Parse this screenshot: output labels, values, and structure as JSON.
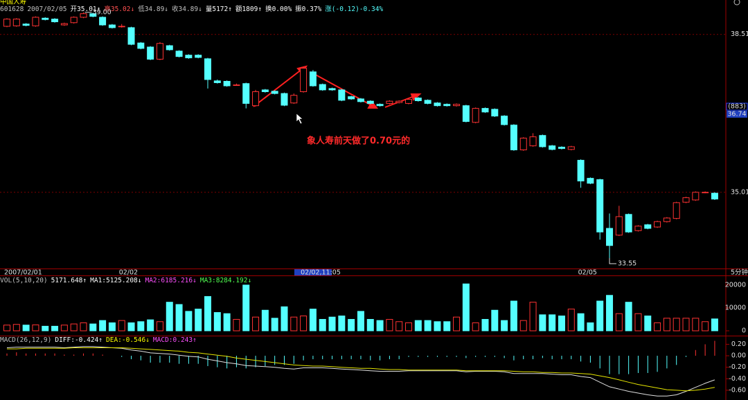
{
  "chart_data": [
    {
      "type": "candlestick",
      "title": "中国人寿",
      "info": [
        {
          "text": "601628",
          "color": "#c0c0c0"
        },
        {
          "text": "2007/02/05",
          "color": "#c0c0c0"
        },
        {
          "text": "开35.01↑",
          "color": "#ffffff"
        },
        {
          "text": "高35.02↓",
          "color": "#ff5050"
        },
        {
          "text": "低34.89↓",
          "color": "#c0c0c0"
        },
        {
          "text": "收34.89↓",
          "color": "#c0c0c0"
        },
        {
          "text": "量5172↑",
          "color": "#ffffff"
        },
        {
          "text": "额1809↑",
          "color": "#ffffff"
        },
        {
          "text": "换0.00%",
          "color": "#ffffff"
        },
        {
          "text": "振0.37%",
          "color": "#ffffff"
        },
        {
          "text": "涨(-0.12)-0.34%",
          "color": "#54ffff"
        }
      ],
      "categories": [
        "2007/02/01",
        null,
        null,
        null,
        null,
        null,
        null,
        null,
        null,
        null,
        null,
        null,
        "02/02",
        null,
        null,
        null,
        null,
        null,
        null,
        null,
        null,
        null,
        null,
        null,
        null,
        null,
        null,
        null,
        null,
        null,
        null,
        "02/02,11:05",
        null,
        null,
        null,
        null,
        null,
        null,
        null,
        null,
        null,
        null,
        null,
        null,
        null,
        null,
        null,
        null,
        null,
        null,
        null,
        null,
        null,
        null,
        null,
        null,
        null,
        null,
        null,
        null,
        "02/05",
        null,
        null,
        null,
        null,
        null,
        null,
        null,
        null,
        null,
        null,
        null,
        null,
        null,
        null
      ],
      "open": [
        38.69,
        38.7,
        38.74,
        38.7,
        38.87,
        38.85,
        38.72,
        38.77,
        38.89,
        38.97,
        38.89,
        38.72,
        38.69,
        38.66,
        38.32,
        38.23,
        37.96,
        38.26,
        38.14,
        38.05,
        38.05,
        37.97,
        37.48,
        37.47,
        37.39,
        37.42,
        36.93,
        37.28,
        37.25,
        37.2,
        36.99,
        37.24,
        37.68,
        37.4,
        37.31,
        37.28,
        37.13,
        37.08,
        37.03,
        36.96,
        36.98,
        37.0,
        36.98,
        37.1,
        37.05,
        36.99,
        36.96,
        36.93,
        36.93,
        36.56,
        36.87,
        36.85,
        36.7,
        36.5,
        35.95,
        36.04,
        36.27,
        36.04,
        36.01,
        35.96,
        35.72,
        35.32,
        35.29,
        34.21,
        34.06,
        34.52,
        34.16,
        34.29,
        34.24,
        34.36,
        34.43,
        34.79,
        34.84,
        35.01,
        34.99
      ],
      "high": [
        38.87,
        38.87,
        38.76,
        38.91,
        38.89,
        38.87,
        38.77,
        38.91,
        39.0,
        38.99,
        38.91,
        38.74,
        38.74,
        38.68,
        38.34,
        38.25,
        38.34,
        38.28,
        38.16,
        38.07,
        38.07,
        37.99,
        37.51,
        37.49,
        37.42,
        37.44,
        37.28,
        37.3,
        37.27,
        37.22,
        37.2,
        37.8,
        37.72,
        37.42,
        37.33,
        37.3,
        37.15,
        37.1,
        37.05,
        36.98,
        37.05,
        37.05,
        37.09,
        37.12,
        37.07,
        37.01,
        36.98,
        36.98,
        36.95,
        36.89,
        36.89,
        36.87,
        36.72,
        36.52,
        36.23,
        36.32,
        36.29,
        36.06,
        36.03,
        36.04,
        35.74,
        35.34,
        35.31,
        34.54,
        34.71,
        34.54,
        34.28,
        34.31,
        34.38,
        34.46,
        34.8,
        34.91,
        35.03,
        35.03,
        35.01
      ],
      "low": [
        38.67,
        38.68,
        38.69,
        38.68,
        38.82,
        38.77,
        38.7,
        38.75,
        38.87,
        38.89,
        38.7,
        38.64,
        38.66,
        38.27,
        38.18,
        37.94,
        37.94,
        38.15,
        38.0,
        37.97,
        37.98,
        37.31,
        37.42,
        37.35,
        37.37,
        36.87,
        36.91,
        37.22,
        37.18,
        36.92,
        36.97,
        37.22,
        37.35,
        37.26,
        37.26,
        37.03,
        37.06,
        37.0,
        36.96,
        36.91,
        36.96,
        36.98,
        36.96,
        37.02,
        36.96,
        36.91,
        36.91,
        36.91,
        36.56,
        36.54,
        36.77,
        36.68,
        36.49,
        35.93,
        35.93,
        36.02,
        36.0,
        35.94,
        35.96,
        35.94,
        35.11,
        35.19,
        33.96,
        33.55,
        34.04,
        34.11,
        34.14,
        34.19,
        34.22,
        34.34,
        34.41,
        34.77,
        34.82,
        34.99,
        34.84
      ],
      "close": [
        38.85,
        38.85,
        38.71,
        38.89,
        38.84,
        38.79,
        38.75,
        38.89,
        38.97,
        38.91,
        38.72,
        38.66,
        38.69,
        38.29,
        38.2,
        37.96,
        38.31,
        38.17,
        38.02,
        37.99,
        38.0,
        37.51,
        37.44,
        37.37,
        37.39,
        36.98,
        37.24,
        37.24,
        37.2,
        36.94,
        37.16,
        37.76,
        37.37,
        37.28,
        37.28,
        37.05,
        37.08,
        37.02,
        36.98,
        36.93,
        37.03,
        37.03,
        37.07,
        37.04,
        36.98,
        36.93,
        36.93,
        36.96,
        36.58,
        36.87,
        36.79,
        36.7,
        36.51,
        35.95,
        36.21,
        36.24,
        36.02,
        35.96,
        35.98,
        36.02,
        35.26,
        35.21,
        34.13,
        33.83,
        34.47,
        34.13,
        34.26,
        34.21,
        34.36,
        34.44,
        34.78,
        34.89,
        35.01,
        35.01,
        34.86
      ],
      "ylim": [
        33.32,
        39.15
      ],
      "yticks": [
        38.51,
        35.01
      ],
      "marker_label": "(883)",
      "marker_value": 36.74,
      "max_label": "39.00",
      "min_label": "33.55",
      "period": "5分钟",
      "annotation": "象人寿前天做了0.70元的",
      "up_color": "#ff3232",
      "down_color": "#54ffff"
    },
    {
      "type": "bar",
      "header": [
        {
          "text": "VOL(5,10,20)",
          "color": "#c0c0c0"
        },
        {
          "text": "5171.648↑",
          "color": "#ffffff"
        },
        {
          "text": "MA1:5125.208↓",
          "color": "#ffffff"
        },
        {
          "text": "MA2:6185.216↓",
          "color": "#ff50ff"
        },
        {
          "text": "MA3:8284.192↓",
          "color": "#50ff50"
        }
      ],
      "values": [
        2500,
        2800,
        2500,
        2600,
        2000,
        2000,
        2500,
        3000,
        3500,
        3000,
        4500,
        3500,
        4500,
        3500,
        4000,
        4800,
        4000,
        12500,
        11500,
        8500,
        9500,
        15000,
        8000,
        7500,
        5000,
        20000,
        6000,
        9000,
        5500,
        10500,
        6000,
        6500,
        9500,
        5000,
        6000,
        6500,
        5000,
        8500,
        5000,
        4500,
        5000,
        4000,
        3500,
        4500,
        4500,
        4000,
        4000,
        6000,
        20500,
        3500,
        5000,
        9000,
        4500,
        13000,
        4500,
        12500,
        7000,
        7000,
        6500,
        9500,
        7500,
        3500,
        13000,
        15500,
        7500,
        12500,
        7500,
        6500,
        3500,
        5500,
        5500,
        5500,
        5500,
        4000,
        5200
      ],
      "ylim": [
        0,
        23600
      ],
      "yticks": [
        0,
        10000,
        20000
      ]
    },
    {
      "type": "macd",
      "header": [
        {
          "text": "MACD(26,12,9)",
          "color": "#c0c0c0"
        },
        {
          "text": "DIFF:-0.424↑",
          "color": "#ffffff"
        },
        {
          "text": "DEA:-0.546↓",
          "color": "#ffff00"
        },
        {
          "text": "MACD:0.243↑",
          "color": "#ff50ff"
        }
      ],
      "values": [
        0.04,
        0.06,
        0.04,
        0.04,
        0.04,
        0.04,
        0.02,
        0.02,
        0.04,
        0.04,
        0.02,
        0,
        -0.02,
        -0.06,
        -0.08,
        -0.12,
        -0.12,
        -0.12,
        -0.14,
        -0.14,
        -0.14,
        -0.18,
        -0.2,
        -0.22,
        -0.2,
        -0.22,
        -0.2,
        -0.18,
        -0.16,
        -0.16,
        -0.14,
        -0.08,
        -0.06,
        -0.06,
        -0.06,
        -0.06,
        -0.06,
        -0.06,
        -0.08,
        -0.08,
        -0.06,
        -0.06,
        -0.02,
        -0.02,
        -0.02,
        -0.02,
        -0.02,
        -0.02,
        -0.04,
        -0.02,
        -0.02,
        -0.02,
        -0.04,
        -0.08,
        -0.06,
        -0.06,
        -0.04,
        -0.06,
        -0.06,
        -0.06,
        -0.1,
        -0.12,
        -0.22,
        -0.32,
        -0.32,
        -0.32,
        -0.3,
        -0.3,
        -0.28,
        -0.22,
        -0.16,
        -0.02,
        0.1,
        0.2,
        0.26
      ],
      "diff": {
        "color": "#e0e0e0",
        "values": [
          0.14,
          0.15,
          0.15,
          0.15,
          0.15,
          0.15,
          0.14,
          0.15,
          0.16,
          0.16,
          0.15,
          0.14,
          0.13,
          0.1,
          0.08,
          0.05,
          0.04,
          0.03,
          0.01,
          -0.01,
          -0.02,
          -0.06,
          -0.09,
          -0.12,
          -0.14,
          -0.17,
          -0.18,
          -0.19,
          -0.2,
          -0.22,
          -0.23,
          -0.21,
          -0.21,
          -0.21,
          -0.22,
          -0.23,
          -0.24,
          -0.25,
          -0.26,
          -0.27,
          -0.27,
          -0.27,
          -0.26,
          -0.26,
          -0.26,
          -0.26,
          -0.26,
          -0.26,
          -0.28,
          -0.27,
          -0.27,
          -0.27,
          -0.28,
          -0.31,
          -0.31,
          -0.31,
          -0.31,
          -0.32,
          -0.33,
          -0.33,
          -0.36,
          -0.38,
          -0.46,
          -0.54,
          -0.58,
          -0.62,
          -0.65,
          -0.68,
          -0.7,
          -0.7,
          -0.68,
          -0.62,
          -0.55,
          -0.48,
          -0.42
        ]
      },
      "dea": {
        "color": "#e6e600",
        "values": [
          0.12,
          0.12,
          0.13,
          0.13,
          0.13,
          0.13,
          0.13,
          0.14,
          0.14,
          0.14,
          0.14,
          0.14,
          0.14,
          0.13,
          0.12,
          0.11,
          0.1,
          0.09,
          0.08,
          0.06,
          0.05,
          0.03,
          0.01,
          -0.01,
          -0.04,
          -0.06,
          -0.08,
          -0.1,
          -0.12,
          -0.14,
          -0.16,
          -0.17,
          -0.18,
          -0.18,
          -0.19,
          -0.2,
          -0.21,
          -0.22,
          -0.22,
          -0.23,
          -0.24,
          -0.24,
          -0.25,
          -0.25,
          -0.25,
          -0.25,
          -0.25,
          -0.25,
          -0.26,
          -0.26,
          -0.26,
          -0.26,
          -0.26,
          -0.27,
          -0.28,
          -0.28,
          -0.29,
          -0.29,
          -0.3,
          -0.3,
          -0.31,
          -0.32,
          -0.35,
          -0.38,
          -0.42,
          -0.46,
          -0.5,
          -0.53,
          -0.56,
          -0.59,
          -0.6,
          -0.61,
          -0.6,
          -0.58,
          -0.55
        ]
      },
      "ylim": [
        -0.77,
        0.29
      ],
      "yticks": [
        {
          "value": 0.2,
          "label": "0.20"
        },
        {
          "value": 0,
          "label": "0.00"
        },
        {
          "value": -0.2,
          "label": "-0.20"
        },
        {
          "value": -0.4,
          "label": "-0.40"
        },
        {
          "value": -0.6,
          "label": "-0.60"
        }
      ]
    }
  ]
}
